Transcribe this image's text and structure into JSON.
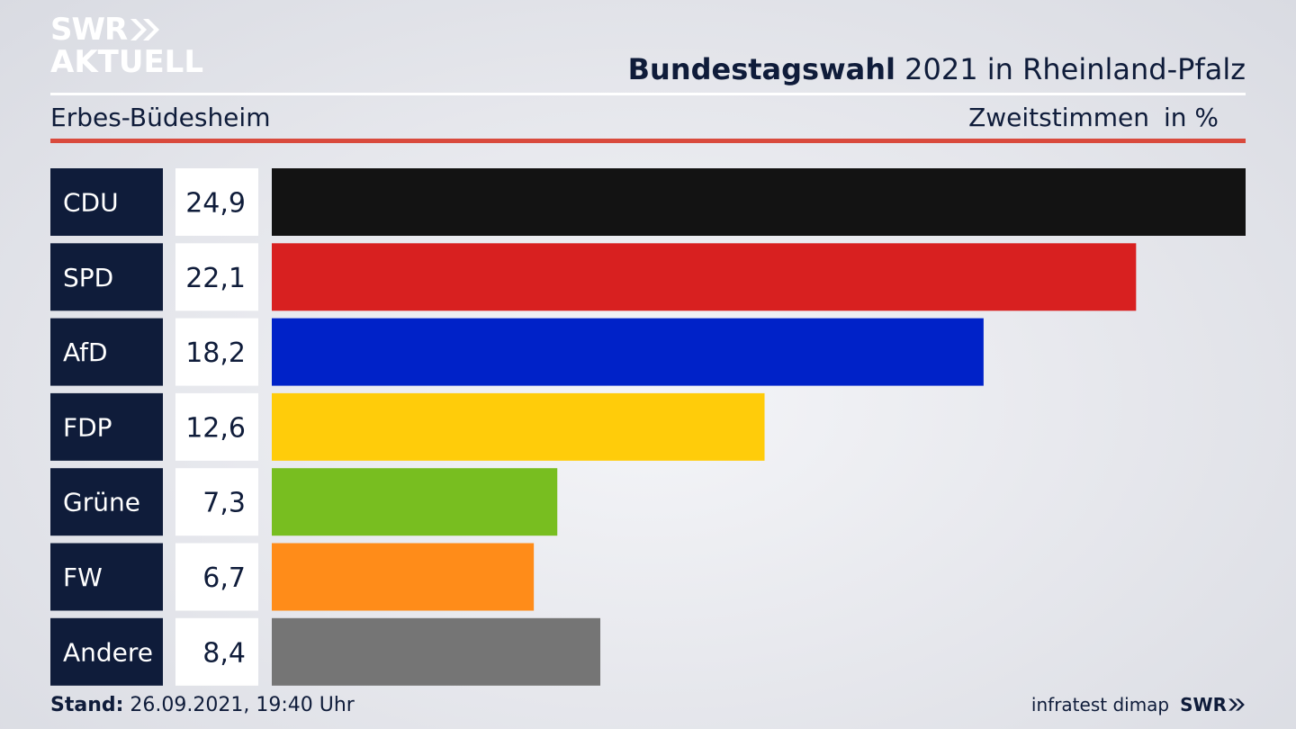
{
  "brand": {
    "logo_line1": "SWR",
    "logo_line2": "AKTUELL",
    "footer_logo": "SWR"
  },
  "header": {
    "title_bold": "Bundestagswahl",
    "title_rest": " 2021 in Rheinland-Pfalz",
    "region": "Erbes-Büdesheim",
    "measure": "Zweitstimmen",
    "unit": "in %"
  },
  "footer": {
    "stand_label": "Stand:",
    "stand_value": " 26.09.2021, 19:40 Uhr",
    "source": "infratest dimap"
  },
  "chart_data": {
    "type": "bar",
    "orientation": "horizontal",
    "categories": [
      "CDU",
      "SPD",
      "AfD",
      "FDP",
      "Grüne",
      "FW",
      "Andere"
    ],
    "values": [
      24.9,
      22.1,
      18.2,
      12.6,
      7.3,
      6.7,
      8.4
    ],
    "value_labels": [
      "24,9",
      "22,1",
      "18,2",
      "12,6",
      "7,3",
      "6,7",
      "8,4"
    ],
    "colors": [
      "#131313",
      "#d82020",
      "#0022c8",
      "#ffcc0a",
      "#78be20",
      "#ff8c19",
      "#757575"
    ],
    "xlim": [
      0,
      24.9
    ],
    "colors_meta": {
      "label_box": "#0f1c3a",
      "value_box": "#ffffff"
    }
  }
}
